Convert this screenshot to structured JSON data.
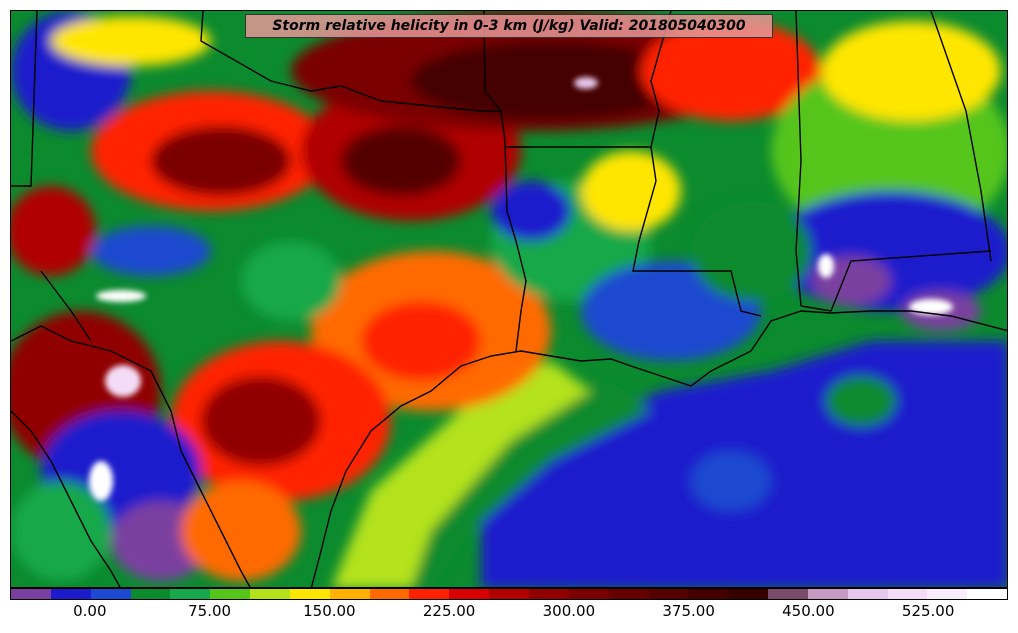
{
  "title": "Storm relative helicity in 0-3 km (J/kg) Valid: 201805040300",
  "colorbar": {
    "levels": [
      -50,
      -25,
      0,
      25,
      50,
      75,
      100,
      125,
      150,
      175,
      200,
      225,
      250,
      275,
      300,
      325,
      350,
      375,
      400,
      425,
      450,
      475,
      500,
      525,
      550,
      575
    ],
    "colors": [
      "#7a3fa0",
      "#1c1ccc",
      "#1c4ad0",
      "#0b8a2e",
      "#16a84a",
      "#55c51a",
      "#b4e21a",
      "#ffe600",
      "#ffb000",
      "#ff6a00",
      "#ff2000",
      "#d80000",
      "#b00000",
      "#900000",
      "#7a0000",
      "#660000",
      "#550000",
      "#440000",
      "#350000",
      "#7a4a6a",
      "#c79ac4",
      "#e6c6ea",
      "#f4dcf6",
      "#f9ecfb",
      "#ffffff"
    ],
    "tick_labels": [
      {
        "label": "0.00",
        "value": 0
      },
      {
        "label": "75.00",
        "value": 75
      },
      {
        "label": "150.00",
        "value": 150
      },
      {
        "label": "225.00",
        "value": 225
      },
      {
        "label": "300.00",
        "value": 300
      },
      {
        "label": "375.00",
        "value": 375
      },
      {
        "label": "450.00",
        "value": 450
      },
      {
        "label": "525.00",
        "value": 525
      }
    ]
  }
}
